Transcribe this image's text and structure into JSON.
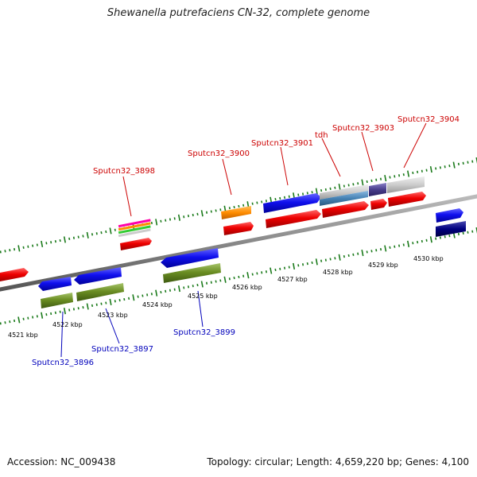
{
  "title": "Shewanella putrefaciens CN-32, complete genome",
  "footer": {
    "accession": "Accession: NC_009438",
    "summary": "Topology: circular; Length: 4,659,220 bp; Genes: 4,100"
  },
  "kbp_labels": [
    "4521 kbp",
    "4522 kbp",
    "4523 kbp",
    "4524 kbp",
    "4525 kbp",
    "4526 kbp",
    "4527 kbp",
    "4528 kbp",
    "4529 kbp",
    "4530 kbp"
  ],
  "forward_labels": [
    "Sputcn32_3898",
    "Sputcn32_3900",
    "Sputcn32_3901",
    "tdh",
    "Sputcn32_3903",
    "Sputcn32_3904"
  ],
  "reverse_labels": [
    "Sputcn32_3896",
    "Sputcn32_3897",
    "Sputcn32_3899"
  ],
  "colors": {
    "forward_cds": "#ee0000",
    "reverse_cds": "#6b8e23",
    "forward_gene": "#1010ee",
    "backbone": "#888888",
    "tick": "#1a7a1a",
    "orange": "#ff8c00",
    "lightgray": "#cccccc",
    "steelblue": "#4682b4",
    "slate": "#483d8b",
    "navy": "#000080"
  }
}
